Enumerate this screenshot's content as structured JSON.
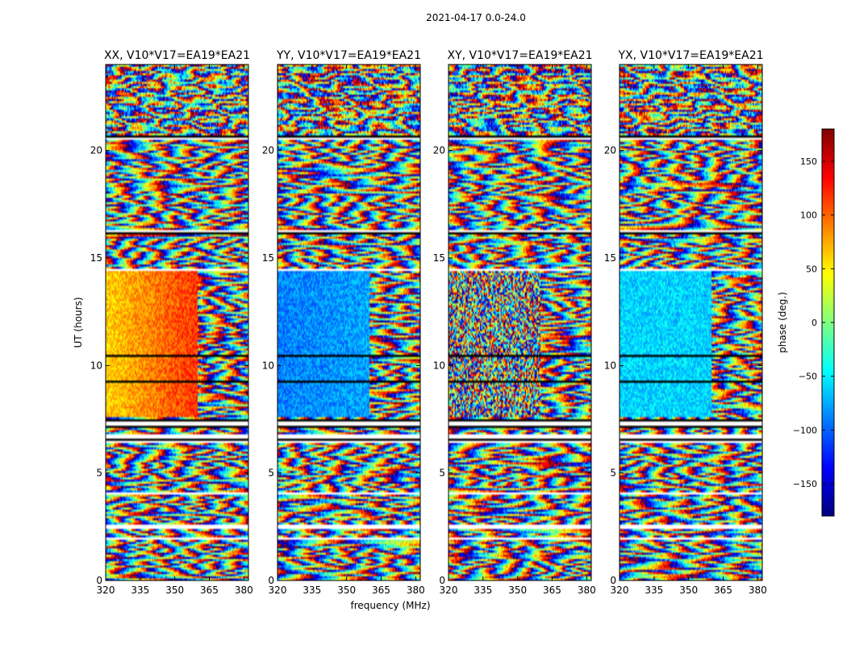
{
  "figure": {
    "suptitle": "2021-04-17 0.0-24.0",
    "ylabel": "UT (hours)",
    "xlabel": "frequency (MHz)"
  },
  "chart_data": {
    "type": "heatmap",
    "x": {
      "label": "frequency (MHz)",
      "range": [
        320,
        382
      ],
      "ticks": [
        320,
        335,
        350,
        365,
        380
      ]
    },
    "y": {
      "label": "UT (hours)",
      "range": [
        0,
        24
      ],
      "ticks": [
        0,
        5,
        10,
        15,
        20
      ]
    },
    "colorbar": {
      "label": "phase (deg.)",
      "range": [
        -180,
        180
      ],
      "ticks": [
        -150,
        -100,
        -50,
        0,
        50,
        100,
        150
      ],
      "colormap": [
        "#00007f",
        "#0000ff",
        "#007fff",
        "#00ffff",
        "#7fff7f",
        "#ffff00",
        "#ff7f00",
        "#ff0000",
        "#7f0000"
      ]
    },
    "panels": [
      {
        "title": "XX, V10*V17=EA19*EA21",
        "mid_phase": 60,
        "mid_gradient": 90,
        "fringe_start_mhz": 360
      },
      {
        "title": "YY, V10*V17=EA19*EA21",
        "mid_phase": -90,
        "mid_gradient": 20,
        "fringe_start_mhz": 360
      },
      {
        "title": "XY, V10*V17=EA19*EA21",
        "mid_phase": null,
        "mid_gradient": 0,
        "fringe_start_mhz": 360
      },
      {
        "title": "YX, V10*V17=EA19*EA21",
        "mid_phase": -60,
        "mid_gradient": 0,
        "fringe_start_mhz": 360
      }
    ],
    "gaps_ut": [
      [
        0.95,
        1.02
      ],
      [
        1.92,
        2.02
      ],
      [
        2.38,
        2.62
      ],
      [
        3.95,
        4.05
      ],
      [
        6.45,
        6.75
      ],
      [
        7.1,
        7.55
      ],
      [
        9.22,
        9.32
      ],
      [
        10.38,
        10.52
      ],
      [
        14.42,
        14.52
      ],
      [
        16.15,
        16.25
      ],
      [
        20.55,
        20.72
      ]
    ]
  }
}
